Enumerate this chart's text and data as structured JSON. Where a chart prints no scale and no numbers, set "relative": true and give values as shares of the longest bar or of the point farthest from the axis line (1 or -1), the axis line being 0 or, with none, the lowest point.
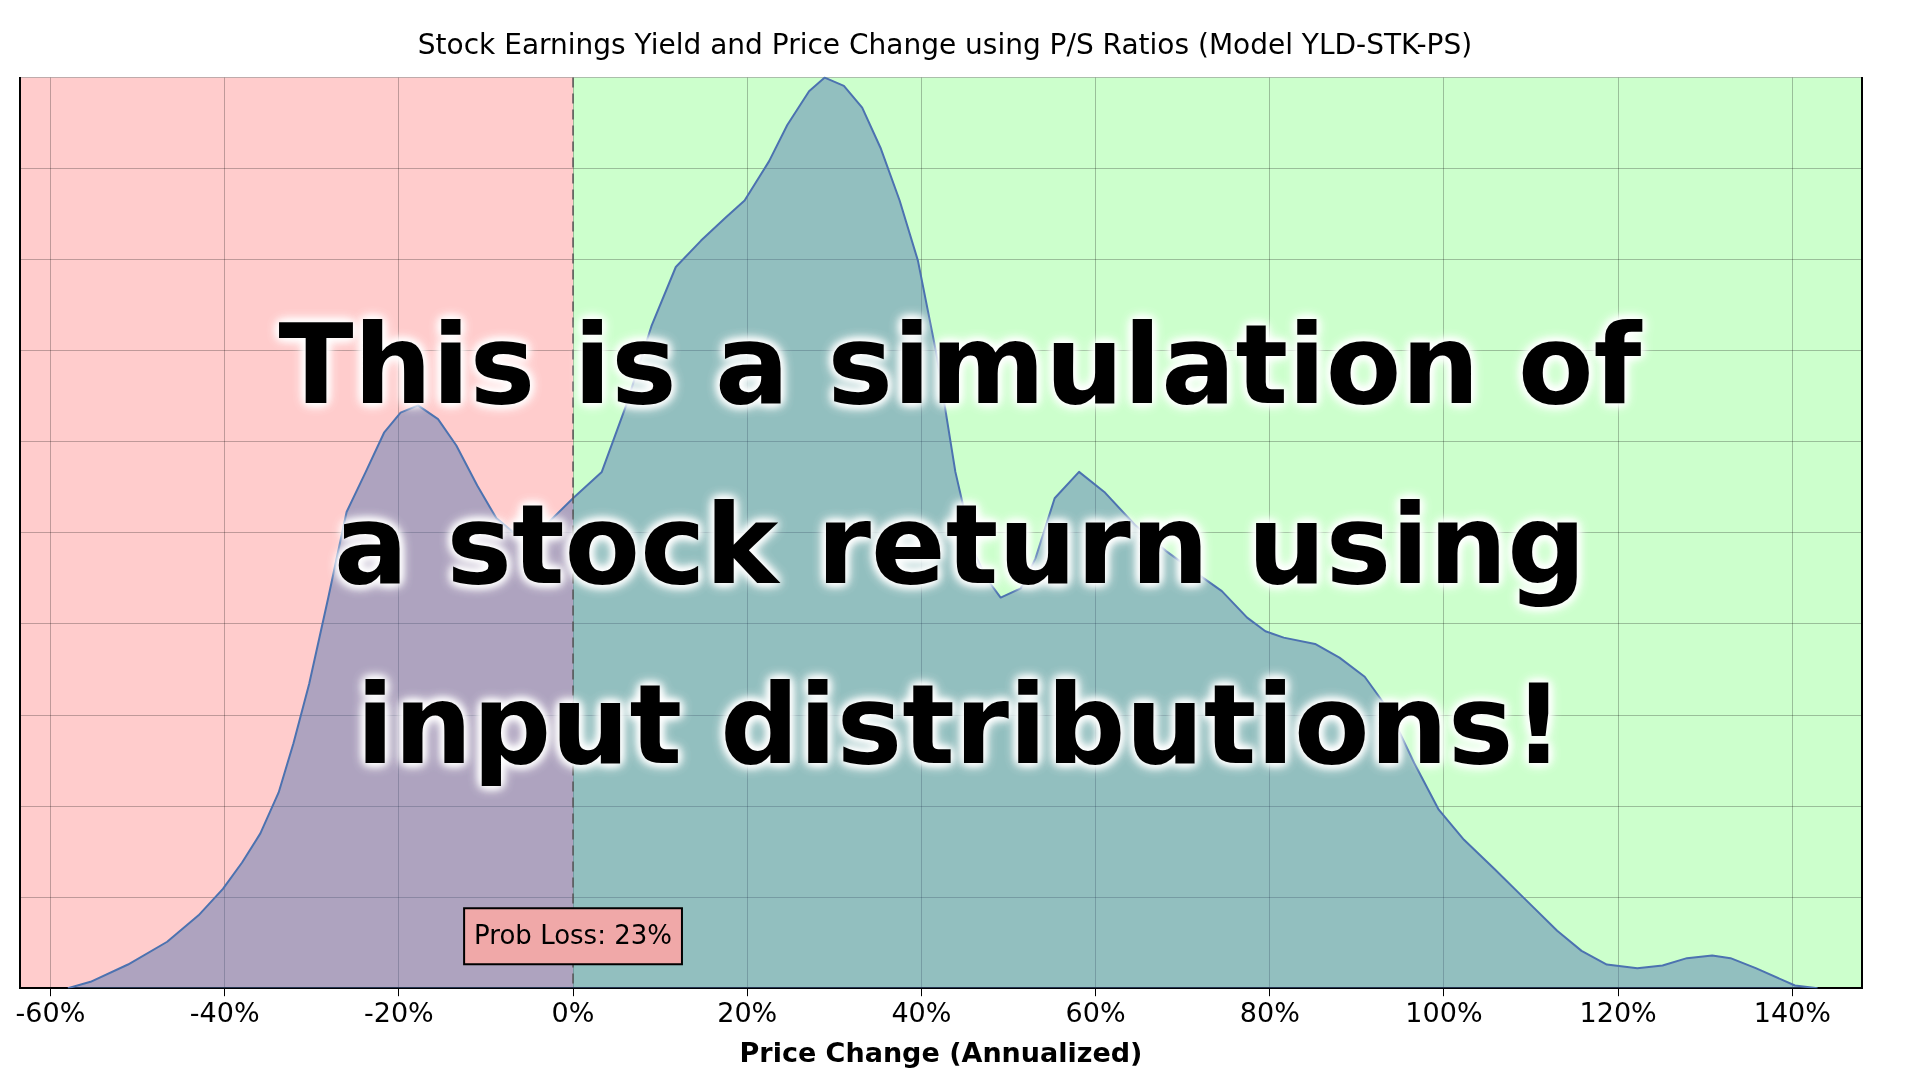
{
  "chart_data": {
    "type": "area",
    "subtitle": "Stock Earnings Yield and Price Change using P/S Ratios (Model YLD-STK-PS)",
    "xlabel": "Price Change (Annualized)",
    "relative": true,
    "color": "#4c72b0",
    "x": [
      -58,
      -55.4,
      -51.1,
      -46.6,
      -43,
      -40.2,
      -38,
      -35.9,
      -33.8,
      -32.1,
      -30.3,
      -28.1,
      -26,
      -23.8,
      -21.7,
      -19.8,
      -17.8,
      -15.5,
      -13.4,
      -11,
      -8.8,
      -6,
      -3.1,
      0,
      3.3,
      6.1,
      9,
      11.8,
      14.7,
      17.5,
      19.7,
      22.5,
      24.6,
      27.1,
      28.9,
      31.1,
      33.2,
      35.3,
      37.5,
      39.6,
      41.7,
      43.9,
      46,
      47.4,
      49.1,
      51.4,
      53.1,
      55.3,
      58.1,
      61,
      64.5,
      68.1,
      71.7,
      74.5,
      77.4,
      79.5,
      81.6,
      85.2,
      88,
      90.9,
      93.7,
      96.6,
      99.4,
      102.3,
      105.8,
      109.4,
      113,
      115.8,
      118.7,
      122.2,
      125.1,
      127.9,
      130.8,
      132.9,
      135.8,
      140.3,
      142.9
    ],
    "values": [
      0,
      0.007,
      0.026,
      0.051,
      0.08,
      0.109,
      0.138,
      0.17,
      0.215,
      0.269,
      0.334,
      0.429,
      0.523,
      0.567,
      0.61,
      0.632,
      0.64,
      0.625,
      0.596,
      0.552,
      0.516,
      0.494,
      0.509,
      0.538,
      0.567,
      0.64,
      0.727,
      0.792,
      0.821,
      0.846,
      0.865,
      0.908,
      0.948,
      0.985,
      1,
      0.991,
      0.967,
      0.923,
      0.865,
      0.799,
      0.698,
      0.567,
      0.48,
      0.451,
      0.429,
      0.439,
      0.472,
      0.538,
      0.567,
      0.545,
      0.509,
      0.48,
      0.455,
      0.436,
      0.407,
      0.392,
      0.385,
      0.378,
      0.363,
      0.342,
      0.305,
      0.247,
      0.196,
      0.163,
      0.131,
      0.097,
      0.063,
      0.041,
      0.026,
      0.022,
      0.025,
      0.033,
      0.036,
      0.033,
      0.022,
      0.003,
      0
    ],
    "xlim": [
      -63.5,
      148
    ],
    "xticks": [
      {
        "value": -60,
        "label": "-60%"
      },
      {
        "value": -40,
        "label": "-40%"
      },
      {
        "value": -20,
        "label": "-20%"
      },
      {
        "value": 0,
        "label": "0%"
      },
      {
        "value": 20,
        "label": "20%"
      },
      {
        "value": 40,
        "label": "40%"
      },
      {
        "value": 60,
        "label": "60%"
      },
      {
        "value": 80,
        "label": "80%"
      },
      {
        "value": 100,
        "label": "100%"
      },
      {
        "value": 120,
        "label": "120%"
      },
      {
        "value": 140,
        "label": "140%"
      }
    ],
    "bands": [
      {
        "axis": "x",
        "from": -63.5,
        "to": 0,
        "color": "#ffcccc"
      },
      {
        "axis": "x",
        "from": 0,
        "to": 148,
        "color": "#ccffcc"
      }
    ],
    "ref_lines": [
      {
        "axis": "x",
        "value": 0,
        "color": "#555555",
        "line_style": "dashed"
      }
    ],
    "annotations": [
      {
        "text": "Prob Loss: 23%",
        "x": 0
      },
      "This is a simulation of a stock return using input distributions!"
    ],
    "grid": true,
    "legend": false
  }
}
